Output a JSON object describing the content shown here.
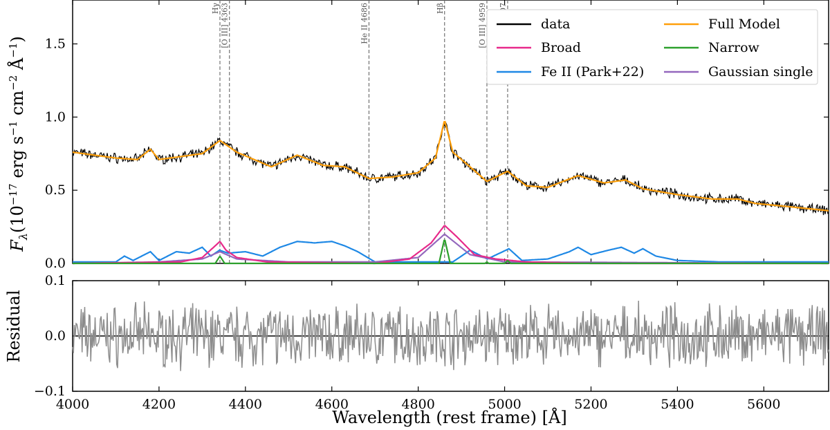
{
  "chart_data": [
    {
      "type": "line",
      "name": "spectrum-fit",
      "xlim": [
        4000,
        5750
      ],
      "ylim": [
        0,
        1.8
      ],
      "ylabel": "Fλ (10−17 erg s−1 cm−2 Å−1)",
      "ylabel_parts": {
        "symbol": "F",
        "sub": "λ",
        "open": "(10",
        "e1": "−17",
        "u1": " erg s",
        "e2": "−1",
        "u2": " cm",
        "e3": "−2",
        "u3": " Å",
        "e4": "−1",
        "close": ")"
      },
      "x_ticks": [
        4000,
        4200,
        4400,
        4600,
        4800,
        5000,
        5200,
        5400,
        5600
      ],
      "y_ticks": [
        0.0,
        0.5,
        1.0,
        1.5
      ],
      "y_tick_labels": [
        "0.0",
        "0.5",
        "1.0",
        "1.5"
      ],
      "line_markers": [
        {
          "label": "Hγ",
          "x": 4341
        },
        {
          "label": "[O III] 4363",
          "x": 4363
        },
        {
          "label": "He II 4686",
          "x": 4686
        },
        {
          "label": "Hβ",
          "x": 4861
        },
        {
          "label": "[O III] 4959",
          "x": 4959
        },
        {
          "label": "[O III] 5007",
          "x": 5007
        }
      ],
      "legend": [
        {
          "label": "data",
          "color": "#000000"
        },
        {
          "label": "Broad",
          "color": "#e7298a"
        },
        {
          "label": "Fe II (Park+22)",
          "color": "#1e88e5"
        },
        {
          "label": "Full Model",
          "color": "#ff9f0a"
        },
        {
          "label": "Narrow",
          "color": "#2ca02c"
        },
        {
          "label": "Gaussian single",
          "color": "#9467bd"
        }
      ],
      "series": [
        {
          "name": "Full Model",
          "color": "#ff9f0a",
          "x": [
            4000,
            4050,
            4100,
            4150,
            4180,
            4200,
            4250,
            4300,
            4341,
            4380,
            4420,
            4460,
            4520,
            4580,
            4630,
            4686,
            4740,
            4800,
            4840,
            4861,
            4880,
            4920,
            4959,
            5007,
            5050,
            5100,
            5170,
            5230,
            5280,
            5320,
            5400,
            5480,
            5540,
            5580,
            5650,
            5750
          ],
          "y": [
            0.76,
            0.74,
            0.72,
            0.71,
            0.78,
            0.71,
            0.73,
            0.75,
            0.84,
            0.76,
            0.71,
            0.66,
            0.74,
            0.67,
            0.66,
            0.58,
            0.59,
            0.62,
            0.72,
            0.98,
            0.76,
            0.66,
            0.56,
            0.63,
            0.53,
            0.52,
            0.6,
            0.55,
            0.57,
            0.51,
            0.47,
            0.44,
            0.44,
            0.41,
            0.39,
            0.36
          ]
        },
        {
          "name": "Broad",
          "color": "#e7298a",
          "x": [
            4000,
            4250,
            4300,
            4330,
            4341,
            4355,
            4380,
            4450,
            4700,
            4780,
            4830,
            4861,
            4890,
            4930,
            4980,
            5050,
            5200,
            5750
          ],
          "y": [
            0.0,
            0.01,
            0.04,
            0.12,
            0.15,
            0.09,
            0.04,
            0.01,
            0.0,
            0.03,
            0.14,
            0.26,
            0.18,
            0.06,
            0.03,
            0.01,
            0.0,
            0.0
          ]
        },
        {
          "name": "Narrow",
          "color": "#2ca02c",
          "x": [
            4000,
            4330,
            4341,
            4352,
            4848,
            4861,
            4874,
            4955,
            4959,
            4963,
            5000,
            5007,
            5014,
            5750
          ],
          "y": [
            0.0,
            0.0,
            0.05,
            0.0,
            0.0,
            0.17,
            0.0,
            0.0,
            0.01,
            0.0,
            0.0,
            0.02,
            0.0,
            0.0
          ]
        },
        {
          "name": "Gaussian single",
          "color": "#9467bd",
          "x": [
            4000,
            4200,
            4300,
            4341,
            4380,
            4500,
            4700,
            4800,
            4861,
            4920,
            5000,
            5750
          ],
          "y": [
            0.0,
            0.01,
            0.03,
            0.08,
            0.03,
            0.01,
            0.01,
            0.04,
            0.2,
            0.06,
            0.01,
            0.0
          ]
        },
        {
          "name": "Fe II (Park+22)",
          "color": "#1e88e5",
          "x": [
            4000,
            4100,
            4120,
            4140,
            4180,
            4200,
            4240,
            4270,
            4300,
            4320,
            4340,
            4360,
            4400,
            4440,
            4480,
            4520,
            4560,
            4600,
            4630,
            4660,
            4700,
            4880,
            4920,
            4960,
            5010,
            5040,
            5100,
            5150,
            5170,
            5200,
            5240,
            5270,
            5300,
            5320,
            5350,
            5400,
            5500,
            5600,
            5750
          ],
          "y": [
            0.01,
            0.01,
            0.05,
            0.02,
            0.08,
            0.02,
            0.08,
            0.07,
            0.11,
            0.05,
            0.09,
            0.07,
            0.08,
            0.05,
            0.11,
            0.15,
            0.14,
            0.15,
            0.12,
            0.08,
            0.01,
            0.01,
            0.09,
            0.03,
            0.1,
            0.02,
            0.03,
            0.08,
            0.11,
            0.06,
            0.09,
            0.11,
            0.07,
            0.1,
            0.05,
            0.02,
            0.01,
            0.01,
            0.01
          ]
        }
      ]
    },
    {
      "type": "line",
      "name": "residual",
      "xlim": [
        4000,
        5750
      ],
      "ylim": [
        -0.1,
        0.1
      ],
      "xlabel": "Wavelength (rest frame) [Å]",
      "ylabel": "Residual",
      "x_ticks": [
        4000,
        4200,
        4400,
        4600,
        4800,
        5000,
        5200,
        5400,
        5600
      ],
      "x_tick_labels": [
        "4000",
        "4200",
        "4400",
        "4600",
        "4800",
        "5000",
        "5200",
        "5400",
        "5600"
      ],
      "y_ticks": [
        -0.1,
        0.0,
        0.1
      ],
      "y_tick_labels": [
        "−0.1",
        "0.0",
        "0.1"
      ],
      "series": [
        {
          "name": "residual",
          "color": "#8c8c8c"
        }
      ]
    }
  ]
}
